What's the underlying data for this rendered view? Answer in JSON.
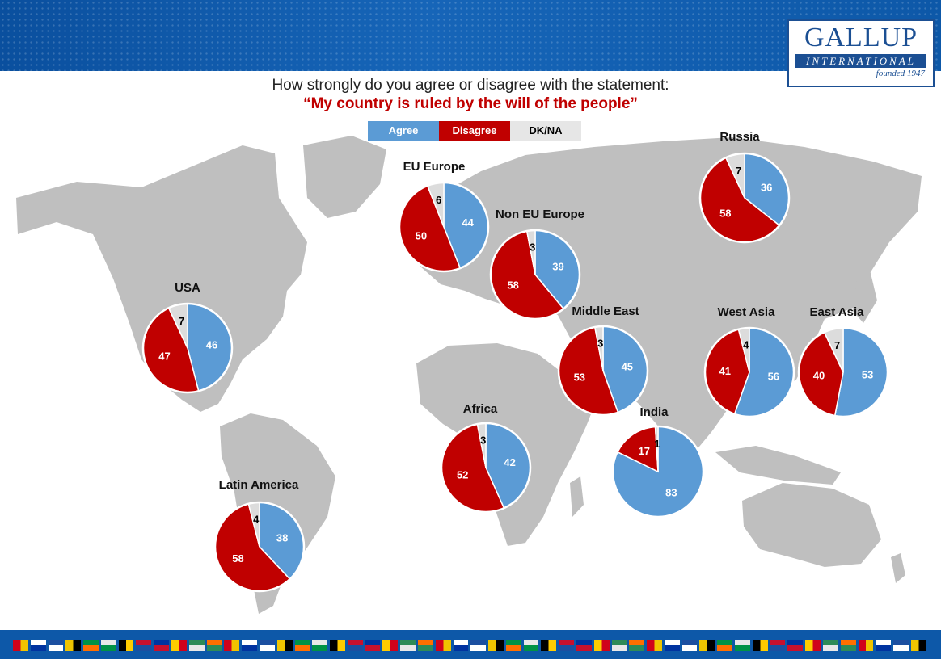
{
  "header": {
    "logo_brand": "GALLUP",
    "logo_sub": "INTERNATIONAL",
    "logo_founded": "founded 1947"
  },
  "question": "How strongly do you agree or disagree with the statement:",
  "statement": "“My country is ruled by the will of the people”",
  "legend": [
    {
      "label": "Agree",
      "color": "#5b9bd5",
      "text_color": "#ffffff"
    },
    {
      "label": "Disagree",
      "color": "#c00000",
      "text_color": "#ffffff"
    },
    {
      "label": "DK/NA",
      "color": "#e6e6e6",
      "text_color": "#000000"
    }
  ],
  "chart_data": {
    "type": "pie",
    "categories": [
      "Agree",
      "Disagree",
      "DK/NA"
    ],
    "colors": [
      "#5b9bd5",
      "#c00000",
      "#dcdcdc"
    ],
    "regions": [
      {
        "name": "USA",
        "agree": 46,
        "disagree": 47,
        "dkna": 7
      },
      {
        "name": "EU Europe",
        "agree": 44,
        "disagree": 50,
        "dkna": 6
      },
      {
        "name": "Non EU Europe",
        "agree": 39,
        "disagree": 58,
        "dkna": 3
      },
      {
        "name": "Russia",
        "agree": 36,
        "disagree": 58,
        "dkna": 7
      },
      {
        "name": "Middle East",
        "agree": 45,
        "disagree": 53,
        "dkna": 3
      },
      {
        "name": "West Asia",
        "agree": 56,
        "disagree": 41,
        "dkna": 4
      },
      {
        "name": "East Asia",
        "agree": 53,
        "disagree": 40,
        "dkna": 7
      },
      {
        "name": "Africa",
        "agree": 42,
        "disagree": 52,
        "dkna": 3
      },
      {
        "name": "India",
        "agree": 83,
        "disagree": 17,
        "dkna": 1
      },
      {
        "name": "Latin America",
        "agree": 38,
        "disagree": 58,
        "dkna": 4
      }
    ]
  }
}
